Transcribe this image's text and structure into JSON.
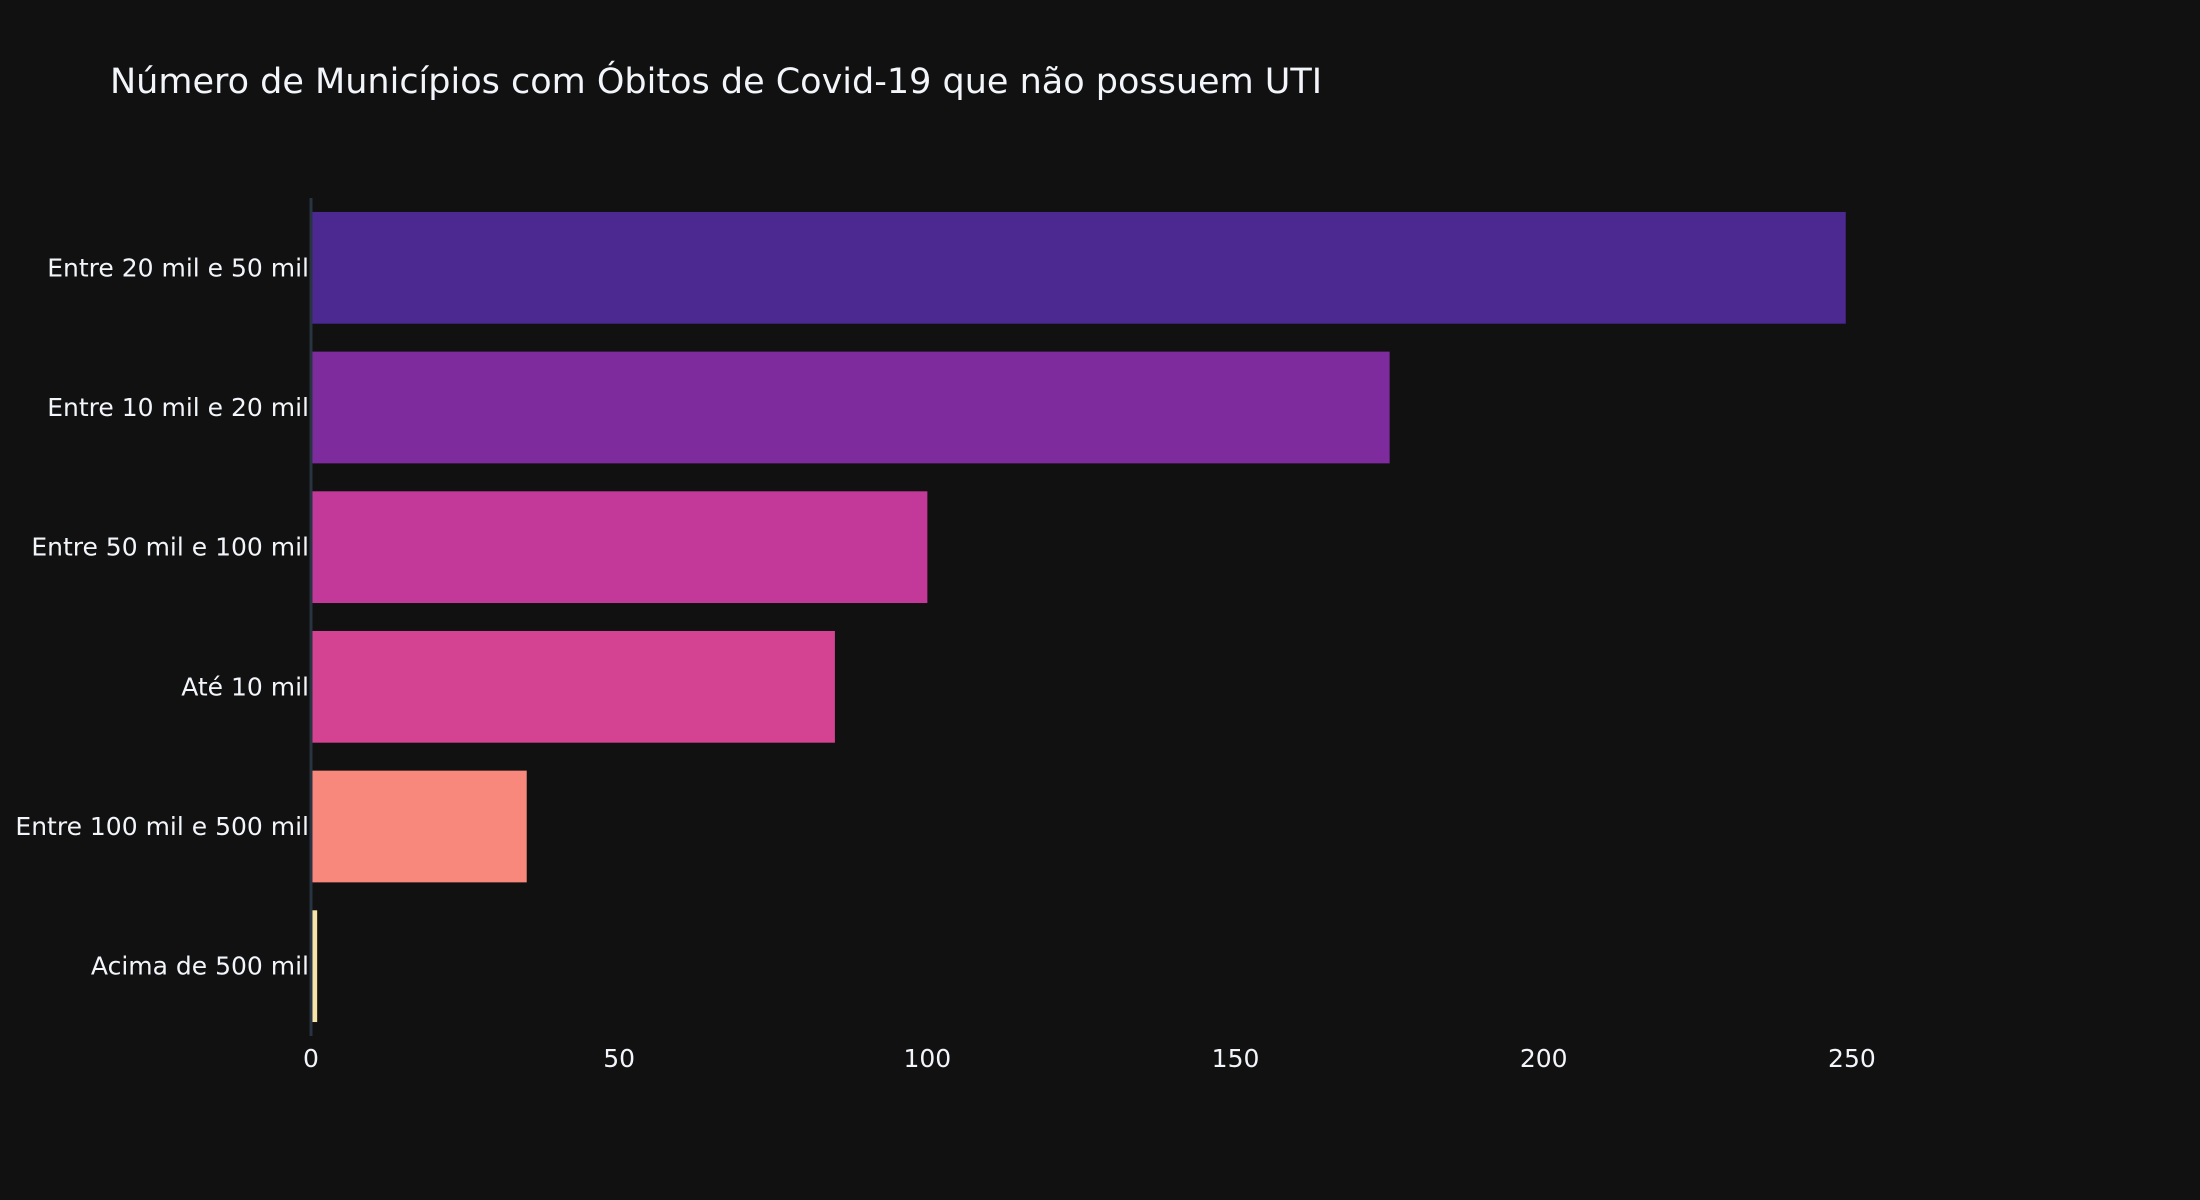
{
  "chart_data": {
    "type": "bar",
    "orientation": "horizontal",
    "title": "Número de Municípios com Óbitos de Covid-19 que não possuem UTI",
    "xlabel": "",
    "ylabel": "",
    "xlim": [
      0,
      275
    ],
    "xticks": [
      0,
      50,
      100,
      150,
      200,
      250
    ],
    "grid": false,
    "legend": false,
    "categories": [
      "Entre 20 mil e 50 mil",
      "Entre 10 mil e 20 mil",
      "Entre 50 mil e 100 mil",
      "Até 10 mil",
      "Entre 100 mil e 500 mil",
      "Acima de 500 mil"
    ],
    "values": [
      249,
      175,
      100,
      85,
      35,
      1
    ],
    "colors": [
      "#4b2991",
      "#7e2b9e",
      "#c2399a",
      "#d44292",
      "#f9887c",
      "#f7e4a8"
    ]
  },
  "theme": {
    "background": "#111111",
    "text": "#f2f5fa",
    "axis_line": "#283442"
  }
}
